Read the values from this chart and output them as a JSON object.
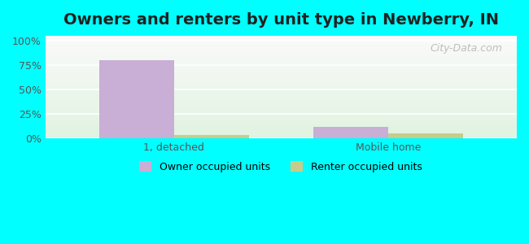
{
  "title": "Owners and renters by unit type in Newberry, IN",
  "categories": [
    "1, detached",
    "Mobile home"
  ],
  "owner_values": [
    80.0,
    12.0
  ],
  "renter_values": [
    3.5,
    5.0
  ],
  "owner_color": "#c9aed6",
  "renter_color": "#c8cc8a",
  "outer_bg": "#00ffff",
  "yticks": [
    0,
    25,
    50,
    75,
    100
  ],
  "ytick_labels": [
    "0%",
    "25%",
    "50%",
    "75%",
    "100%"
  ],
  "ylim": [
    0,
    105
  ],
  "xlim": [
    -0.6,
    1.6
  ],
  "bar_width": 0.35,
  "title_fontsize": 14,
  "legend_labels": [
    "Owner occupied units",
    "Renter occupied units"
  ],
  "watermark": "City-Data.com"
}
